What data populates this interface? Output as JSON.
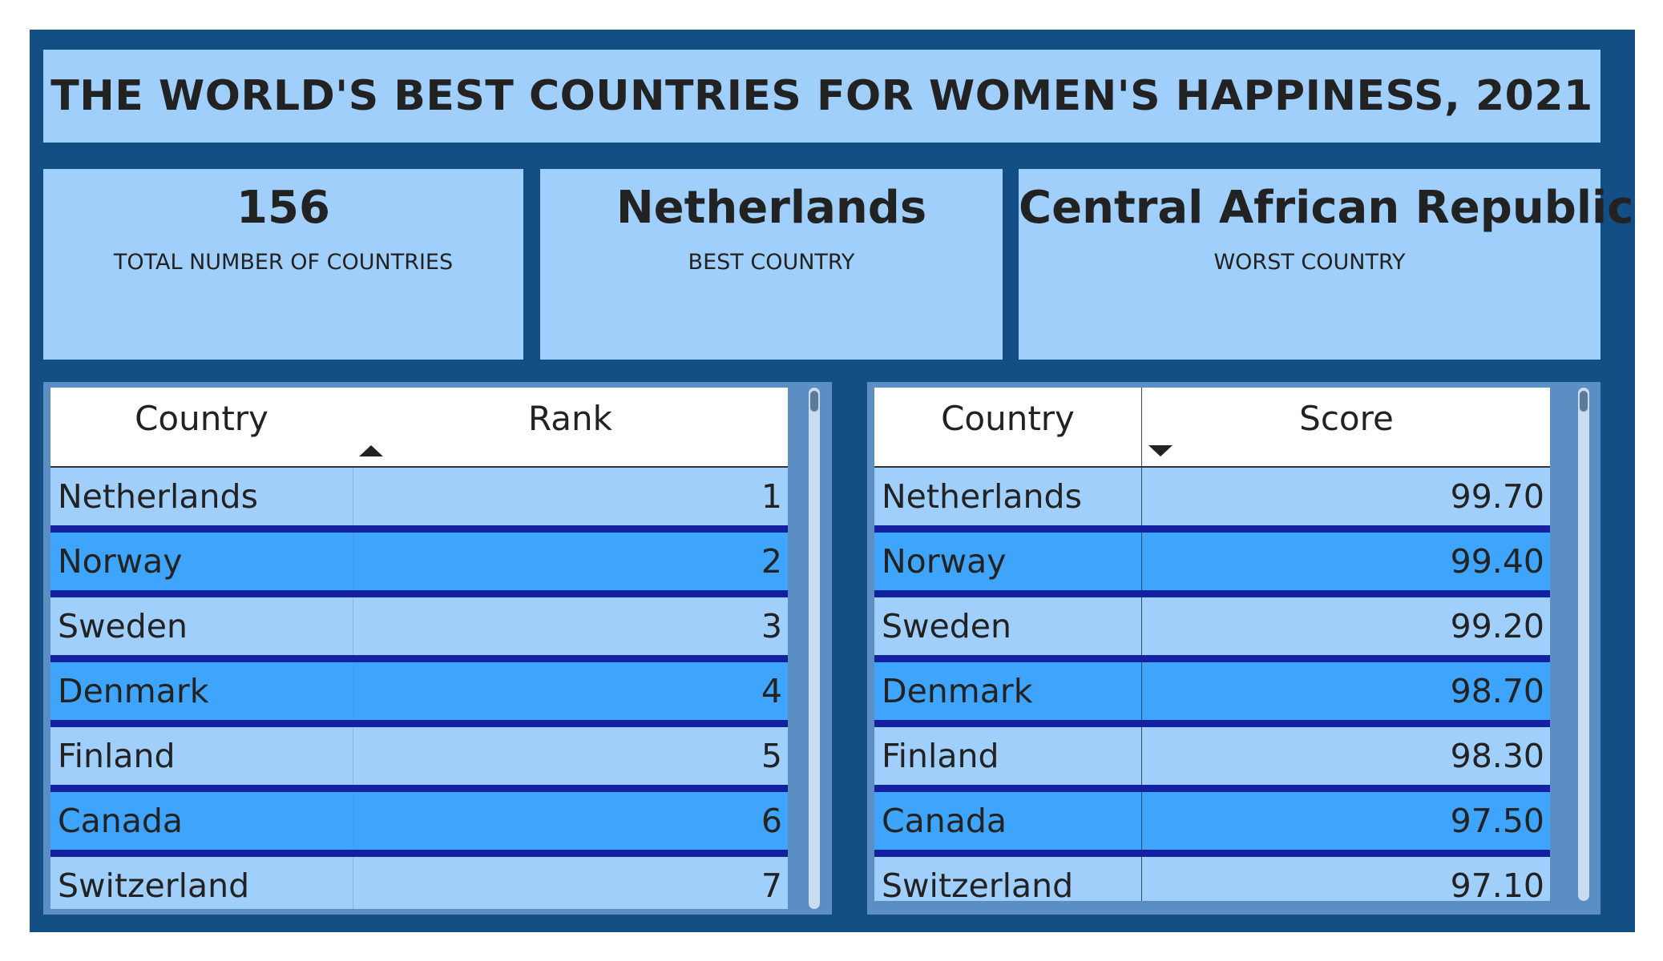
{
  "title": "THE WORLD'S BEST COUNTRIES FOR WOMEN'S HAPPINESS, 2021",
  "cards": [
    {
      "value": "156",
      "label": "TOTAL NUMBER OF COUNTRIES"
    },
    {
      "value": "Netherlands",
      "label": "BEST COUNTRY"
    },
    {
      "value": "Central African Republic",
      "label": "WORST COUNTRY"
    }
  ],
  "rank_table": {
    "columns": [
      "Country",
      "Rank"
    ],
    "sort_icon": "sort-ascending-icon",
    "rows": [
      {
        "country": "Netherlands",
        "value": "1"
      },
      {
        "country": "Norway",
        "value": "2"
      },
      {
        "country": "Sweden",
        "value": "3"
      },
      {
        "country": "Denmark",
        "value": "4"
      },
      {
        "country": "Finland",
        "value": "5"
      },
      {
        "country": "Canada",
        "value": "6"
      },
      {
        "country": "Switzerland",
        "value": "7"
      }
    ]
  },
  "score_table": {
    "columns": [
      "Country",
      "Score"
    ],
    "sort_icon": "sort-descending-icon",
    "rows": [
      {
        "country": "Netherlands",
        "value": "99.70"
      },
      {
        "country": "Norway",
        "value": "99.40"
      },
      {
        "country": "Sweden",
        "value": "99.20"
      },
      {
        "country": "Denmark",
        "value": "98.70"
      },
      {
        "country": "Finland",
        "value": "98.30"
      },
      {
        "country": "Canada",
        "value": "97.50"
      },
      {
        "country": "Switzerland",
        "value": "97.10"
      }
    ]
  },
  "colors": {
    "frame": "#134e85",
    "panel": "#a0cffc",
    "row_alt": "#3ea4fc",
    "row_separator": "#1320a0"
  }
}
